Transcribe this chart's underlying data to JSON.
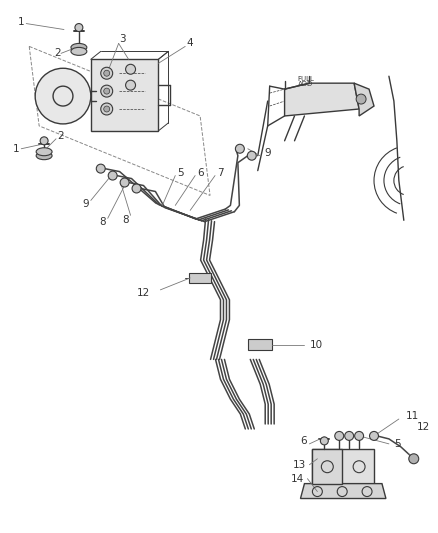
{
  "bg_color": "#ffffff",
  "line_color": "#3a3a3a",
  "label_color": "#333333",
  "tube_color": "#444444",
  "gray_fill": "#b0b0b0",
  "light_gray": "#d8d8d8",
  "figsize": [
    4.38,
    5.33
  ],
  "dpi": 100
}
